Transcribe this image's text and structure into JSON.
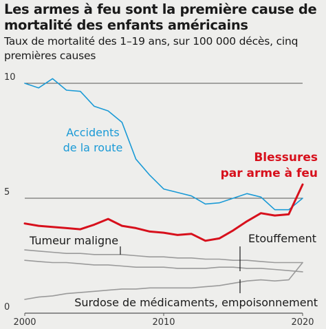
{
  "title": "Les armes à feu sont la première cause de mortalité des enfants américains",
  "subtitle": "Taux de mortalité des 1–19 ans, sur 100 000 décès, cinq premières causes",
  "colors": {
    "road": "#1a9ad6",
    "firearm": "#d7101c",
    "grey": "#9a9a9a",
    "grid": "#555555",
    "text": "#1a1a1a"
  },
  "chart_data": {
    "type": "line",
    "title": "Les armes à feu sont la première cause de mortalité des enfants américains",
    "subtitle": "Taux de mortalité des 1–19 ans, sur 100 000 décès, cinq premières causes",
    "xlim": [
      2000,
      2020
    ],
    "ylim": [
      0,
      10
    ],
    "x_ticks": [
      "2000",
      "2010",
      "2020"
    ],
    "y_ticks": [
      "10",
      "5",
      "0"
    ],
    "x": [
      2000,
      2001,
      2002,
      2003,
      2004,
      2005,
      2006,
      2007,
      2008,
      2009,
      2010,
      2011,
      2012,
      2013,
      2014,
      2015,
      2016,
      2017,
      2018,
      2019,
      2020
    ],
    "series": [
      {
        "name": "Accidents de la route",
        "label_lines": [
          "Accidents",
          "de la route"
        ],
        "color": "#1a9ad6",
        "values": [
          10.0,
          9.8,
          10.2,
          9.7,
          9.65,
          9.0,
          8.8,
          8.3,
          6.7,
          6.0,
          5.4,
          5.25,
          5.1,
          4.75,
          4.8,
          5.0,
          5.2,
          5.05,
          4.5,
          4.5,
          5.0
        ]
      },
      {
        "name": "Blessures par arme à feu",
        "label_lines": [
          "Blessures",
          "par arme à feu"
        ],
        "color": "#d7101c",
        "values": [
          3.9,
          3.8,
          3.75,
          3.7,
          3.65,
          3.85,
          4.1,
          3.8,
          3.7,
          3.55,
          3.5,
          3.4,
          3.45,
          3.15,
          3.25,
          3.6,
          4.0,
          4.35,
          4.25,
          4.3,
          5.6
        ]
      },
      {
        "name": "Tumeur maligne",
        "label_lines": [
          "Tumeur maligne"
        ],
        "color": "#9a9a9a",
        "values": [
          2.75,
          2.7,
          2.65,
          2.6,
          2.6,
          2.55,
          2.55,
          2.55,
          2.5,
          2.45,
          2.45,
          2.4,
          2.4,
          2.35,
          2.35,
          2.3,
          2.3,
          2.25,
          2.2,
          2.2,
          2.2
        ]
      },
      {
        "name": "Etouffement",
        "label_lines": [
          "Etouffement"
        ],
        "color": "#9a9a9a",
        "values": [
          2.3,
          2.25,
          2.2,
          2.2,
          2.15,
          2.1,
          2.1,
          2.05,
          2.0,
          2.0,
          2.0,
          1.95,
          1.95,
          1.95,
          2.0,
          2.0,
          1.95,
          1.95,
          1.9,
          1.85,
          1.8
        ]
      },
      {
        "name": "Surdose de médicaments, empoisonnement",
        "label_lines": [
          "Surdose de médicaments, empoisonnement"
        ],
        "color": "#9a9a9a",
        "values": [
          0.6,
          0.7,
          0.75,
          0.85,
          0.9,
          0.95,
          1.0,
          1.05,
          1.05,
          1.1,
          1.1,
          1.1,
          1.1,
          1.15,
          1.2,
          1.3,
          1.4,
          1.45,
          1.4,
          1.45,
          2.2
        ]
      }
    ]
  }
}
